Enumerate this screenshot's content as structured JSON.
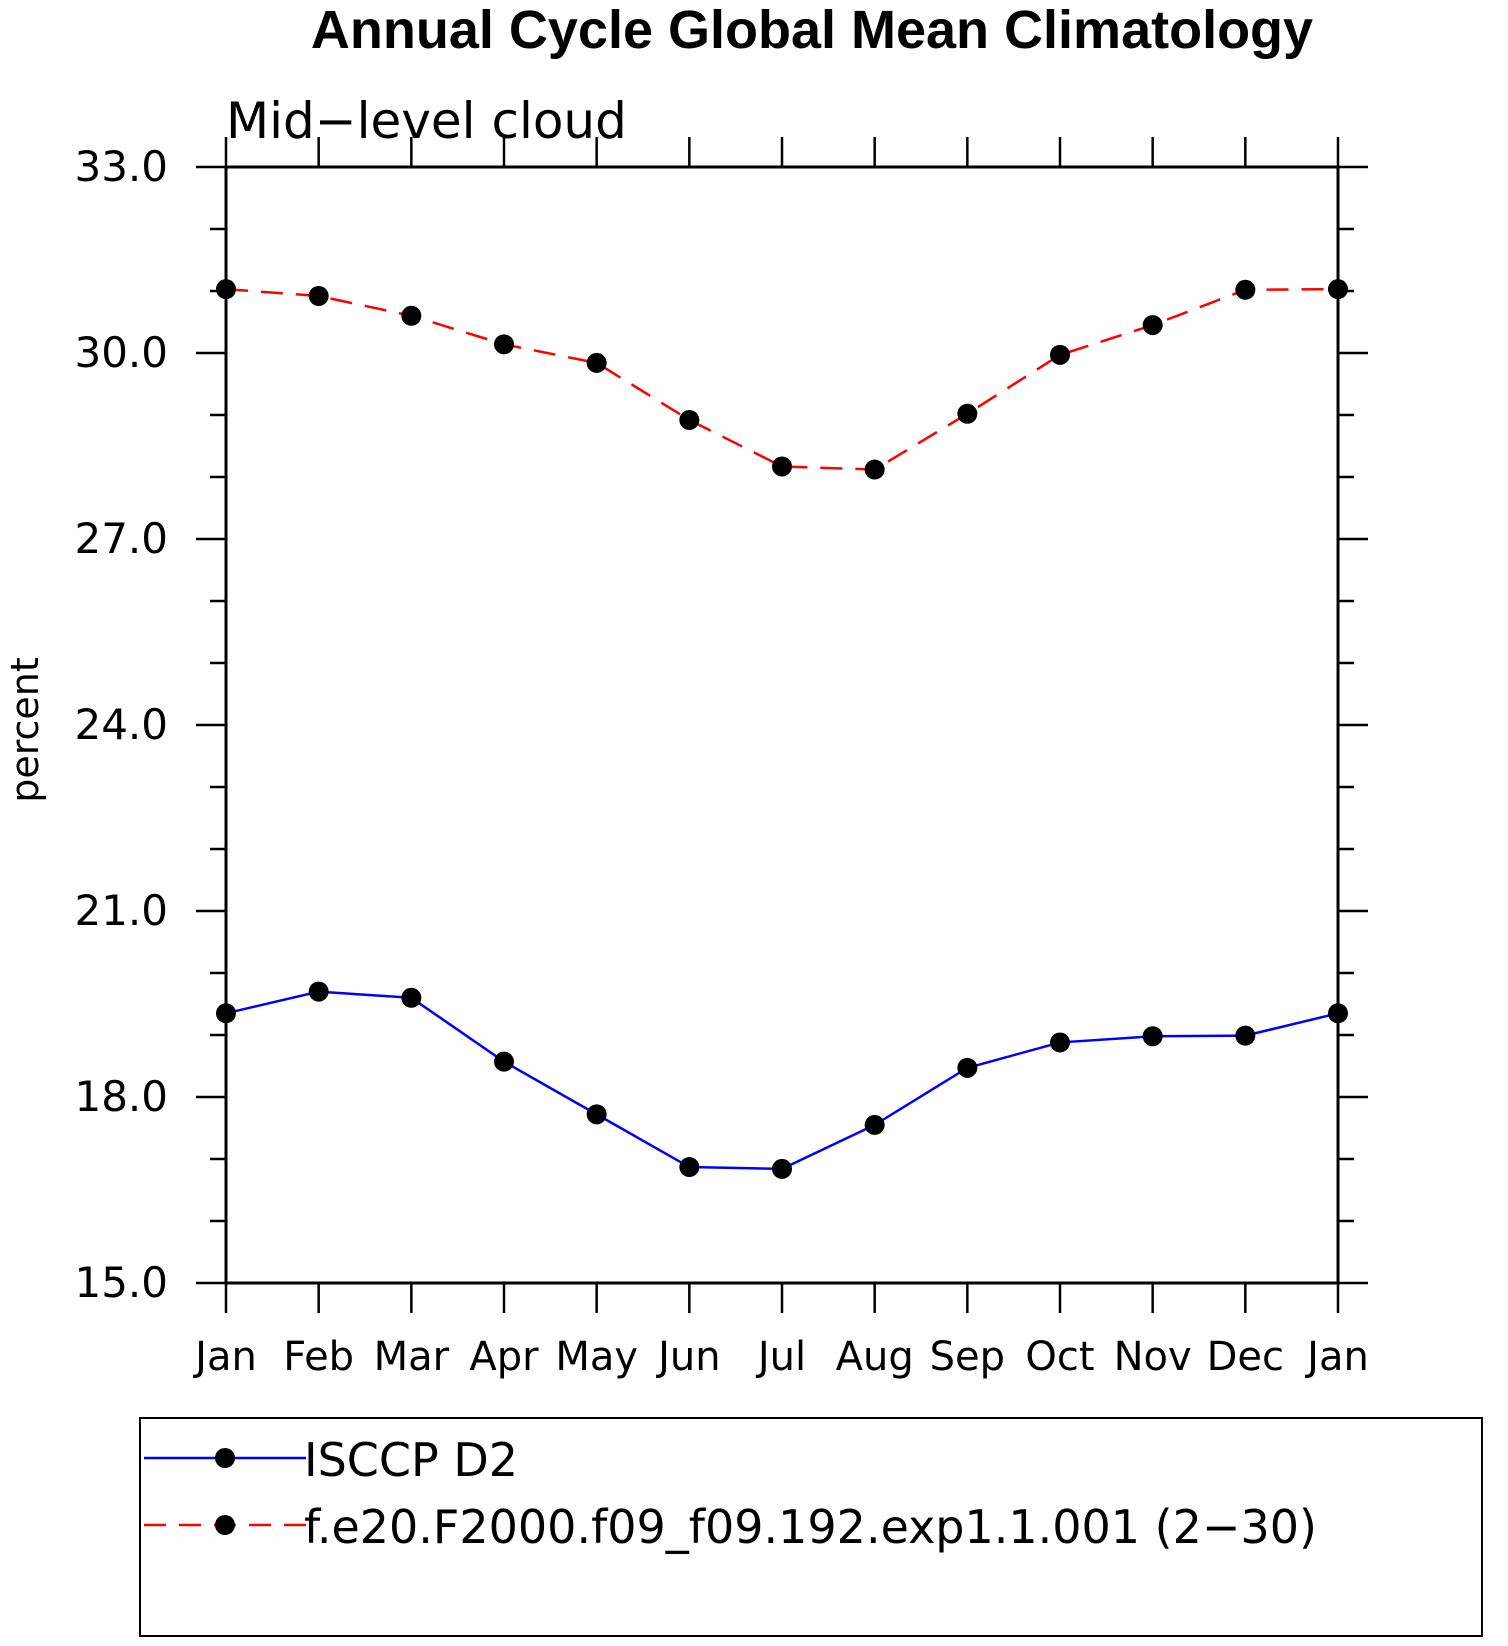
{
  "chart_data": {
    "type": "line",
    "title": "Annual Cycle Global Mean Climatology",
    "subtitle": "Mid−level cloud",
    "ylabel": "percent",
    "xlabel": "",
    "categories": [
      "Jan",
      "Feb",
      "Mar",
      "Apr",
      "May",
      "Jun",
      "Jul",
      "Aug",
      "Sep",
      "Oct",
      "Nov",
      "Dec",
      "Jan"
    ],
    "ylim": [
      15.0,
      33.0
    ],
    "yticks": [
      "15.0",
      "18.0",
      "21.0",
      "24.0",
      "27.0",
      "30.0",
      "33.0"
    ],
    "grid": false,
    "legend_position": "bottom",
    "series": [
      {
        "name": "ISCCP D2",
        "color": "#0000ff",
        "dash": "solid",
        "marker": "filled-circle",
        "values": [
          19.35,
          19.7,
          19.6,
          18.57,
          17.72,
          16.87,
          16.84,
          17.55,
          18.47,
          18.88,
          18.98,
          18.99,
          19.35
        ]
      },
      {
        "name": "f.e20.F2000.f09_f09.192.exp1.1.001 (2−30)",
        "color": "#ff0000",
        "dash": "dashed",
        "marker": "filled-circle",
        "values": [
          31.03,
          30.92,
          30.6,
          30.14,
          29.84,
          28.92,
          28.17,
          28.12,
          29.02,
          29.97,
          30.45,
          31.02,
          31.03
        ]
      }
    ]
  }
}
